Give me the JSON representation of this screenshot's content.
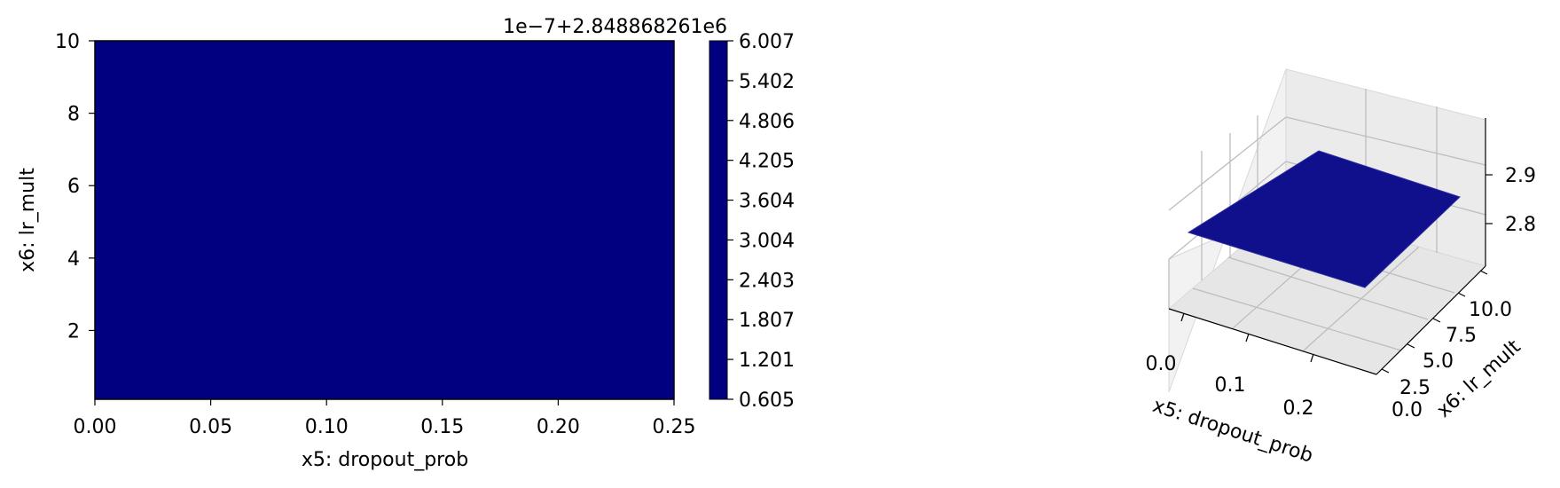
{
  "chart_data": [
    {
      "type": "heatmap",
      "xlabel": "x5: dropout_prob",
      "ylabel": "x6: lr_mult",
      "xlim": [
        0.0,
        0.25
      ],
      "ylim": [
        0.1,
        10
      ],
      "x_ticks": [
        "0.00",
        "0.05",
        "0.10",
        "0.15",
        "0.20",
        "0.25"
      ],
      "y_ticks": [
        "2",
        "4",
        "6",
        "8",
        "10"
      ],
      "fill_color": "#000080",
      "colorbar": {
        "offset_label": "1e−7+2.848868261e6",
        "ticks": [
          "0.605",
          "1.201",
          "1.807",
          "2.403",
          "3.004",
          "3.604",
          "4.205",
          "4.806",
          "5.402",
          "6.007"
        ],
        "color": "#000080"
      }
    },
    {
      "type": "surface3d",
      "xlabel": "x5: dropout_prob",
      "ylabel": "x6: lr_mult",
      "x_ticks": [
        "0.0",
        "0.1",
        "0.2"
      ],
      "y_ticks": [
        "0.0",
        "2.5",
        "5.0",
        "7.5",
        "10.0"
      ],
      "z_ticks": [
        "2.8",
        "2.9"
      ],
      "surface_color": "#10108c"
    }
  ]
}
